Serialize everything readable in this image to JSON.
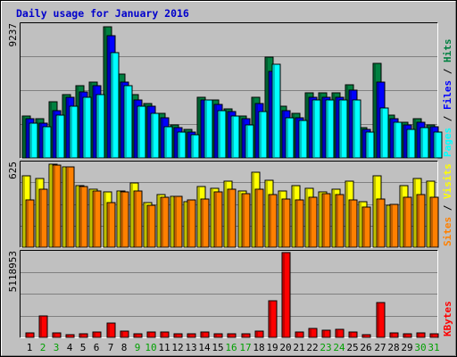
{
  "chart_data": {
    "title": "Daily usage for January 2016",
    "type": "bar",
    "days": [
      "1",
      "2",
      "3",
      "4",
      "5",
      "6",
      "7",
      "8",
      "9",
      "10",
      "11",
      "12",
      "13",
      "14",
      "15",
      "16",
      "17",
      "18",
      "19",
      "20",
      "21",
      "22",
      "23",
      "24",
      "25",
      "26",
      "27",
      "28",
      "29",
      "30",
      "31"
    ],
    "weekend_days": [
      "2",
      "3",
      "9",
      "10",
      "16",
      "17",
      "23",
      "24",
      "30",
      "31"
    ],
    "panels": [
      {
        "name": "hits-files-pages",
        "ymax_label": "9237",
        "ymax": 9237,
        "side_labels": [
          "Pages",
          " / ",
          "Files",
          " / ",
          "Hits"
        ],
        "series": [
          {
            "name": "Hits",
            "color": "#008040",
            "values": [
              2900,
              2700,
              3900,
              4400,
              5000,
              5300,
              9100,
              5800,
              4400,
              3800,
              3100,
              2300,
              2000,
              4200,
              4000,
              3400,
              2900,
              4200,
              7000,
              3600,
              3100,
              4500,
              4500,
              4500,
              5100,
              2100,
              6600,
              3000,
              2500,
              2700,
              2300
            ]
          },
          {
            "name": "Files",
            "color": "#0000ff",
            "values": [
              2700,
              2400,
              3300,
              4200,
              4600,
              5000,
              8500,
              5300,
              4000,
              3600,
              2800,
              2100,
              1800,
              4000,
              3700,
              3200,
              2700,
              3800,
              6000,
              3300,
              2800,
              4200,
              4200,
              4200,
              4700,
              2000,
              5300,
              2700,
              2300,
              2500,
              2200
            ]
          },
          {
            "name": "Pages",
            "color": "#00ffff",
            "values": [
              2400,
              2200,
              3000,
              3600,
              4200,
              4400,
              7300,
              5000,
              3600,
              3100,
              2200,
              1800,
              1600,
              4000,
              3300,
              2900,
              2300,
              3200,
              6500,
              2800,
              2600,
              4000,
              4000,
              4000,
              4000,
              1800,
              3500,
              2500,
              2000,
              2100,
              1800
            ]
          }
        ]
      },
      {
        "name": "visits-sites",
        "ymax_label": "625",
        "ymax": 625,
        "side_labels": [
          "Sites",
          " / ",
          "Visits"
        ],
        "series": [
          {
            "name": "Visits",
            "color": "#ffff00",
            "values": [
              530,
              510,
              620,
              600,
              460,
              430,
              410,
              420,
              480,
              330,
              390,
              380,
              340,
              450,
              440,
              490,
              420,
              560,
              500,
              420,
              460,
              440,
              410,
              430,
              490,
              340,
              530,
              310,
              460,
              510,
              490
            ]
          },
          {
            "name": "Sites",
            "color": "#ff8000",
            "values": [
              350,
              430,
              610,
              600,
              450,
              420,
              330,
              410,
              420,
              310,
              370,
              380,
              350,
              360,
              410,
              430,
              400,
              430,
              390,
              360,
              350,
              370,
              400,
              390,
              350,
              300,
              360,
              320,
              370,
              390,
              370
            ]
          }
        ]
      },
      {
        "name": "kbytes",
        "ymax_label": "5118953",
        "ymax": 5118953,
        "side_labels": [
          "KBytes"
        ],
        "series": [
          {
            "name": "KBytes",
            "color": "#ff0000",
            "values": [
              280000,
              1300000,
              260000,
              150000,
              240000,
              320000,
              880000,
              400000,
              240000,
              350000,
              320000,
              200000,
              200000,
              350000,
              230000,
              200000,
              200000,
              400000,
              2200000,
              5118953,
              330000,
              520000,
              420000,
              480000,
              300000,
              150000,
              2100000,
              260000,
              200000,
              250000,
              240000
            ]
          }
        ]
      }
    ]
  }
}
